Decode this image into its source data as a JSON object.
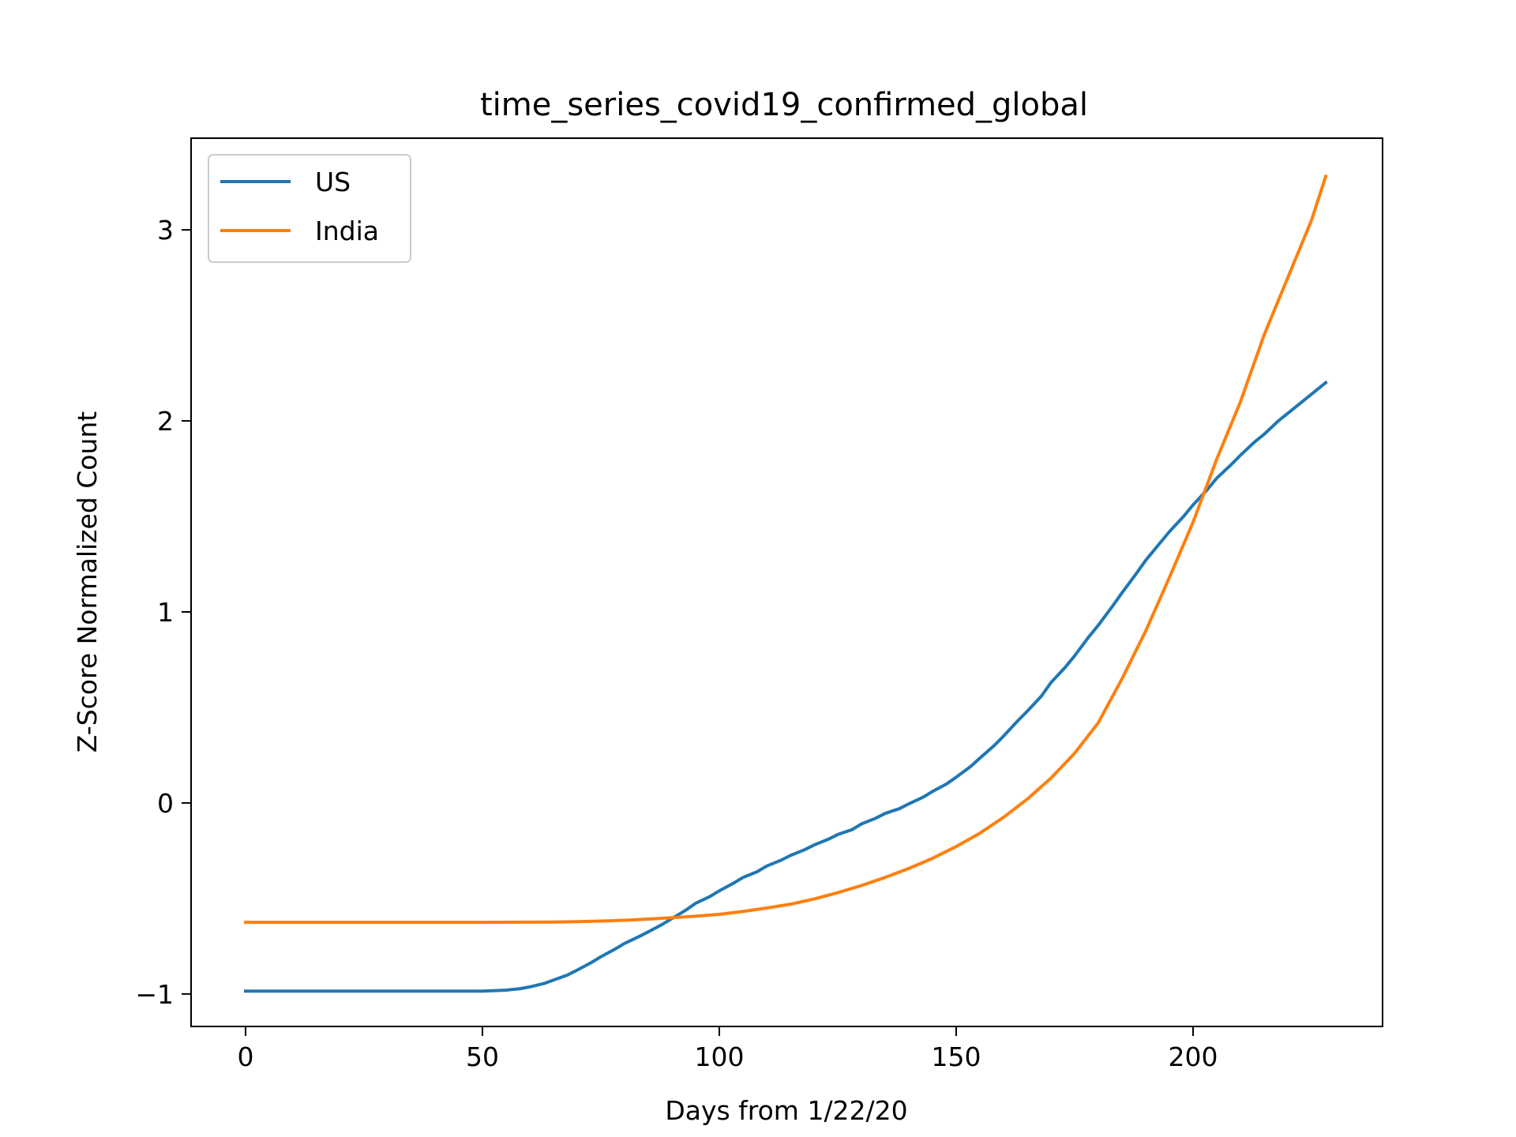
{
  "chart_data": {
    "type": "line",
    "title": "time_series_covid19_confirmed_global",
    "xlabel": "Days from 1/22/20",
    "ylabel": "Z-Score Normalized Count",
    "xlim": [
      -11.5,
      240
    ],
    "ylim": [
      -1.17,
      3.48
    ],
    "x_ticks": [
      0,
      50,
      100,
      150,
      200
    ],
    "x_tick_labels": [
      "0",
      "50",
      "100",
      "150",
      "200"
    ],
    "y_ticks": [
      -1,
      0,
      1,
      2,
      3
    ],
    "y_tick_labels": [
      "−1",
      "0",
      "1",
      "2",
      "3"
    ],
    "grid": false,
    "legend_position": "upper-left",
    "series": [
      {
        "name": "US",
        "color": "#1f77b4",
        "x": [
          0,
          10,
          20,
          30,
          40,
          50,
          52,
          55,
          58,
          60,
          63,
          65,
          68,
          70,
          73,
          75,
          78,
          80,
          83,
          85,
          88,
          90,
          93,
          95,
          98,
          100,
          103,
          105,
          108,
          110,
          113,
          115,
          118,
          120,
          123,
          125,
          128,
          130,
          133,
          135,
          138,
          140,
          143,
          145,
          148,
          150,
          153,
          155,
          158,
          160,
          163,
          165,
          168,
          170,
          173,
          175,
          178,
          180,
          183,
          185,
          188,
          190,
          193,
          195,
          198,
          200,
          203,
          205,
          208,
          210,
          213,
          215,
          218,
          220,
          223,
          225,
          228
        ],
        "y": [
          -0.985,
          -0.985,
          -0.985,
          -0.985,
          -0.985,
          -0.985,
          -0.983,
          -0.98,
          -0.972,
          -0.963,
          -0.945,
          -0.927,
          -0.9,
          -0.875,
          -0.835,
          -0.805,
          -0.765,
          -0.735,
          -0.7,
          -0.675,
          -0.635,
          -0.605,
          -0.56,
          -0.525,
          -0.49,
          -0.46,
          -0.42,
          -0.39,
          -0.36,
          -0.33,
          -0.3,
          -0.275,
          -0.245,
          -0.22,
          -0.19,
          -0.165,
          -0.14,
          -0.11,
          -0.08,
          -0.055,
          -0.03,
          -0.005,
          0.03,
          0.06,
          0.1,
          0.135,
          0.19,
          0.235,
          0.3,
          0.35,
          0.43,
          0.48,
          0.56,
          0.63,
          0.71,
          0.77,
          0.87,
          0.93,
          1.03,
          1.1,
          1.2,
          1.27,
          1.36,
          1.42,
          1.5,
          1.56,
          1.64,
          1.7,
          1.77,
          1.82,
          1.89,
          1.93,
          2.0,
          2.04,
          2.1,
          2.14,
          2.2
        ]
      },
      {
        "name": "India",
        "color": "#ff7f0e",
        "x": [
          0,
          10,
          20,
          30,
          40,
          50,
          60,
          65,
          70,
          75,
          80,
          85,
          90,
          95,
          100,
          105,
          110,
          115,
          120,
          125,
          130,
          135,
          140,
          145,
          150,
          155,
          160,
          165,
          170,
          175,
          180,
          185,
          190,
          195,
          200,
          205,
          210,
          215,
          220,
          225,
          228
        ],
        "y": [
          -0.625,
          -0.625,
          -0.625,
          -0.625,
          -0.625,
          -0.625,
          -0.624,
          -0.623,
          -0.621,
          -0.618,
          -0.614,
          -0.608,
          -0.601,
          -0.593,
          -0.583,
          -0.568,
          -0.55,
          -0.53,
          -0.503,
          -0.47,
          -0.432,
          -0.39,
          -0.343,
          -0.29,
          -0.228,
          -0.158,
          -0.075,
          0.02,
          0.13,
          0.26,
          0.42,
          0.65,
          0.9,
          1.18,
          1.47,
          1.8,
          2.1,
          2.45,
          2.75,
          3.05,
          3.28
        ]
      }
    ]
  }
}
